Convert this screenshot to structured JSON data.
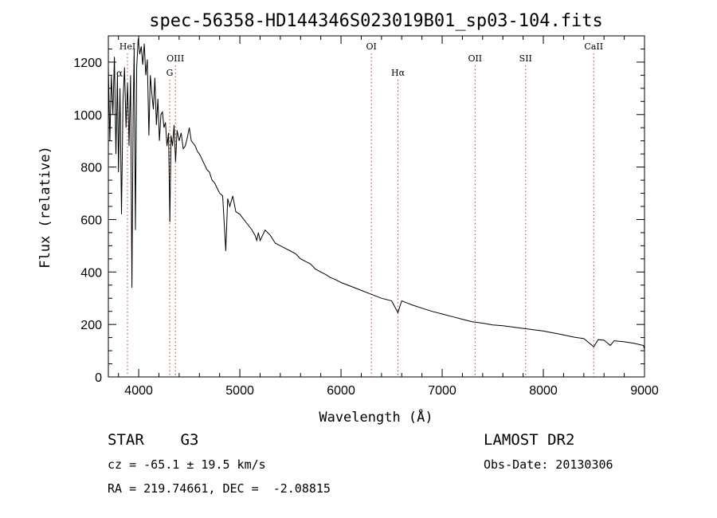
{
  "chart_data": {
    "type": "line",
    "title": "spec-56358-HD144346S023019B01_sp03-104.fits",
    "xlabel": "Wavelength (Å)",
    "ylabel": "Flux (relative)",
    "xlim": [
      3700,
      9000
    ],
    "ylim": [
      0,
      1300
    ],
    "xticks": [
      4000,
      5000,
      6000,
      7000,
      8000,
      9000
    ],
    "yticks": [
      0,
      200,
      400,
      600,
      800,
      1000,
      1200
    ],
    "series": [
      {
        "name": "flux",
        "x": [
          3700,
          3715,
          3730,
          3745,
          3760,
          3775,
          3790,
          3800,
          3815,
          3830,
          3845,
          3860,
          3875,
          3890,
          3905,
          3920,
          3933,
          3945,
          3955,
          3968,
          3980,
          3995,
          4010,
          4025,
          4040,
          4055,
          4070,
          4085,
          4101,
          4115,
          4130,
          4145,
          4160,
          4175,
          4190,
          4205,
          4220,
          4235,
          4250,
          4265,
          4280,
          4295,
          4308,
          4320,
          4335,
          4350,
          4365,
          4380,
          4400,
          4420,
          4440,
          4460,
          4480,
          4500,
          4520,
          4540,
          4560,
          4580,
          4600,
          4625,
          4650,
          4675,
          4700,
          4725,
          4750,
          4775,
          4800,
          4830,
          4861,
          4880,
          4900,
          4930,
          4960,
          5000,
          5040,
          5080,
          5120,
          5150,
          5167,
          5183,
          5200,
          5250,
          5300,
          5350,
          5400,
          5450,
          5500,
          5550,
          5600,
          5650,
          5700,
          5750,
          5800,
          5850,
          5890,
          5950,
          6000,
          6100,
          6200,
          6300,
          6400,
          6500,
          6563,
          6600,
          6700,
          6800,
          6900,
          7000,
          7100,
          7200,
          7300,
          7400,
          7500,
          7600,
          7700,
          7800,
          7900,
          8000,
          8100,
          8200,
          8300,
          8400,
          8498,
          8542,
          8600,
          8662,
          8700,
          8800,
          8900,
          8990,
          9000
        ],
        "values": [
          1180,
          900,
          1150,
          1000,
          1220,
          850,
          1150,
          780,
          1100,
          620,
          1050,
          1180,
          950,
          1120,
          880,
          1150,
          340,
          1000,
          1250,
          560,
          1180,
          1290,
          1230,
          1260,
          1190,
          1270,
          1150,
          1210,
          920,
          1150,
          1080,
          1020,
          1140,
          960,
          1060,
          900,
          1000,
          1010,
          950,
          970,
          880,
          930,
          590,
          920,
          880,
          960,
          820,
          940,
          900,
          930,
          870,
          880,
          910,
          950,
          900,
          890,
          880,
          860,
          850,
          830,
          810,
          790,
          780,
          750,
          740,
          720,
          700,
          690,
          480,
          680,
          650,
          690,
          630,
          620,
          600,
          580,
          560,
          540,
          520,
          550,
          520,
          560,
          540,
          510,
          500,
          490,
          480,
          470,
          450,
          440,
          430,
          410,
          400,
          390,
          380,
          370,
          360,
          345,
          330,
          315,
          300,
          290,
          245,
          290,
          275,
          262,
          250,
          240,
          230,
          220,
          210,
          205,
          198,
          195,
          190,
          185,
          180,
          175,
          168,
          160,
          152,
          146,
          115,
          142,
          140,
          120,
          138,
          134,
          128,
          120,
          105
        ]
      }
    ],
    "lines": [
      {
        "label": "HeI",
        "x": 3889,
        "row": 1
      },
      {
        "label": "OIII",
        "x": 4363,
        "row": 2
      },
      {
        "label": "G",
        "x": 4307,
        "row": 3
      },
      {
        "label": "OI",
        "x": 6300,
        "row": 1
      },
      {
        "label": "Hα",
        "x": 6563,
        "row": 3
      },
      {
        "label": "OII",
        "x": 7325,
        "row": 2
      },
      {
        "label": "SII",
        "x": 7825,
        "row": 2
      },
      {
        "label": "CaII",
        "x": 8498,
        "row": 1
      }
    ],
    "grid": false
  },
  "info": {
    "object": "STAR    G3",
    "survey": "LAMOST DR2",
    "cz": "cz = -65.1 ± 19.5 km/s",
    "obs_date": "Obs-Date: 20130306",
    "radec": "RA = 219.74661, DEC =  -2.08815"
  },
  "partial_label": "α"
}
